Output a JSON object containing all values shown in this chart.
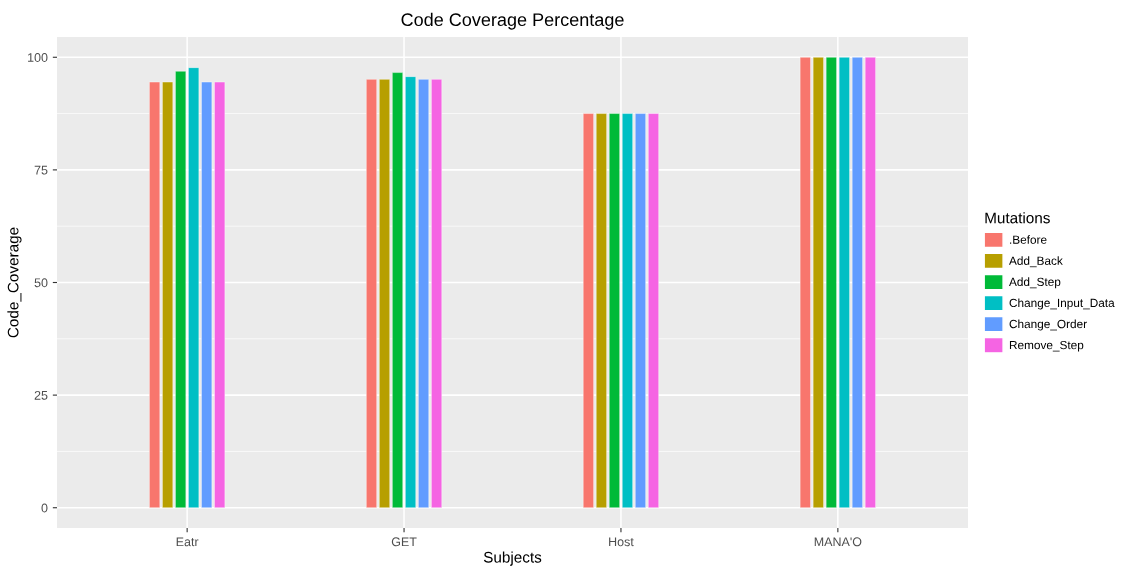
{
  "chart_data": {
    "type": "bar",
    "title": "Code Coverage Percentage",
    "xlabel": "Subjects",
    "ylabel": "Code_Coverage",
    "legend_title": "Mutations",
    "categories": [
      "Eatr",
      "GET",
      "Host",
      "MANA'O"
    ],
    "series": [
      {
        "name": ".Before",
        "color": "#f8766d",
        "values": [
          94.5,
          95.1,
          87.5,
          100
        ]
      },
      {
        "name": "Add_Back",
        "color": "#b79f00",
        "values": [
          94.5,
          95.1,
          87.5,
          100
        ]
      },
      {
        "name": "Add_Step",
        "color": "#00ba38",
        "values": [
          96.9,
          96.6,
          87.5,
          100
        ]
      },
      {
        "name": "Change_Input_Data",
        "color": "#00bfc4",
        "values": [
          97.7,
          95.7,
          87.5,
          100
        ]
      },
      {
        "name": "Change_Order",
        "color": "#619cff",
        "values": [
          94.5,
          95.1,
          87.5,
          100
        ]
      },
      {
        "name": "Remove_Step",
        "color": "#f564e3",
        "values": [
          94.5,
          95.1,
          87.5,
          100
        ]
      }
    ],
    "ylim": [
      -4.5,
      104.5
    ],
    "yticks": [
      0,
      25,
      50,
      75,
      100
    ],
    "grid": true,
    "legend": "right"
  }
}
